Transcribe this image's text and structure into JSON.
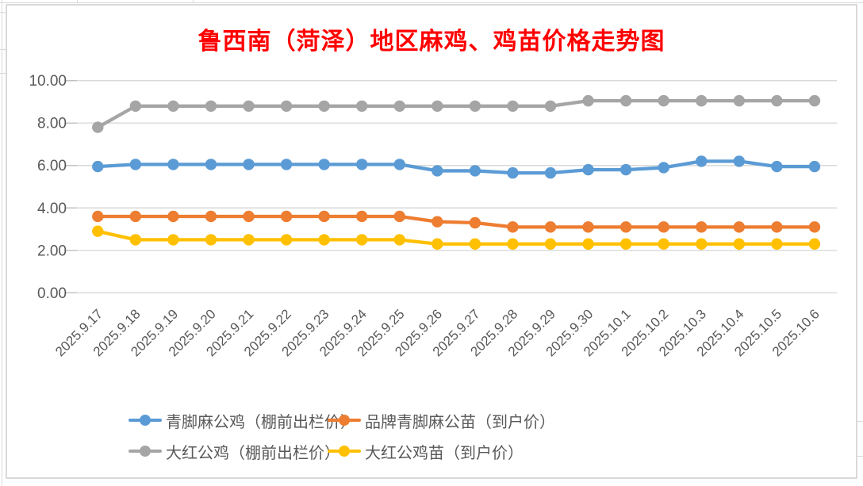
{
  "chart_data": {
    "type": "line",
    "title": "鲁西南（菏泽）地区麻鸡、鸡苗价格走势图",
    "title_color": "#FF0000",
    "categories": [
      "2025.9.17",
      "2025.9.18",
      "2025.9.19",
      "2025.9.20",
      "2025.9.21",
      "2025.9.22",
      "2025.9.23",
      "2025.9.24",
      "2025.9.25",
      "2025.9.26",
      "2025.9.27",
      "2025.9.28",
      "2025.9.29",
      "2025.9.30",
      "2025.10.1",
      "2025.10.2",
      "2025.10.3",
      "2025.10.4",
      "2025.10.5",
      "2025.10.6"
    ],
    "series": [
      {
        "name": "青脚麻公鸡（棚前出栏价）",
        "color": "#5B9BD5",
        "values": [
          5.95,
          6.05,
          6.05,
          6.05,
          6.05,
          6.05,
          6.05,
          6.05,
          6.05,
          5.75,
          5.75,
          5.65,
          5.65,
          5.8,
          5.8,
          5.9,
          6.2,
          6.2,
          5.95,
          5.95
        ]
      },
      {
        "name": "品牌青脚麻公苗（到户价）",
        "color": "#ED7D31",
        "values": [
          3.6,
          3.6,
          3.6,
          3.6,
          3.6,
          3.6,
          3.6,
          3.6,
          3.6,
          3.35,
          3.3,
          3.1,
          3.1,
          3.1,
          3.1,
          3.1,
          3.1,
          3.1,
          3.1,
          3.1
        ]
      },
      {
        "name": "大红公鸡（棚前出栏价）",
        "color": "#A5A5A5",
        "values": [
          7.8,
          8.8,
          8.8,
          8.8,
          8.8,
          8.8,
          8.8,
          8.8,
          8.8,
          8.8,
          8.8,
          8.8,
          8.8,
          9.05,
          9.05,
          9.05,
          9.05,
          9.05,
          9.05,
          9.05
        ]
      },
      {
        "name": "大红公鸡苗（到户价）",
        "color": "#FFC000",
        "values": [
          2.9,
          2.5,
          2.5,
          2.5,
          2.5,
          2.5,
          2.5,
          2.5,
          2.5,
          2.3,
          2.3,
          2.3,
          2.3,
          2.3,
          2.3,
          2.3,
          2.3,
          2.3,
          2.3,
          2.3
        ]
      }
    ],
    "y_axis": {
      "min": 0,
      "max": 10,
      "step": 2,
      "tick_labels": [
        "0.00",
        "2.00",
        "4.00",
        "6.00",
        "8.00",
        "10.00"
      ]
    },
    "x_axis": {
      "label_rotation_deg": 45
    },
    "grid": true,
    "legend_position": "bottom",
    "colors": {
      "gridline": "#D9D9D9",
      "axis_tick": "#BFBFBF",
      "axis_text": "#595959"
    }
  }
}
